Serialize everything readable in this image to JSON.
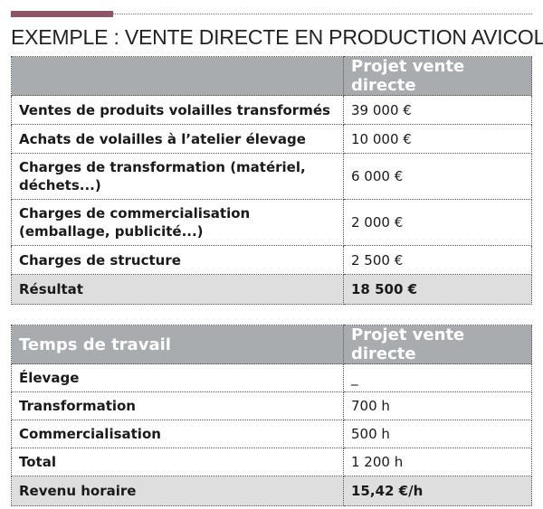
{
  "title": "EXEMPLE : VENTE DIRECTE EN PRODUCTION AVICOLE",
  "table1": {
    "header": [
      "",
      "Projet vente directe"
    ],
    "rows": [
      {
        "label": "Ventes de produits volailles transformés",
        "value": "39 000 €"
      },
      {
        "label": "Achats de volailles à l’atelier élevage",
        "value": "10 000 €"
      },
      {
        "label_line1": "Charges de transformation (matériel,",
        "label_line2": "déchets...)",
        "value": "6 000 €"
      },
      {
        "label_line1": "Charges de commercialisation",
        "label_line2": "(emballage, publicité...)",
        "value": "2 000 €"
      },
      {
        "label": "Charges de structure",
        "value": "2 500 €"
      }
    ],
    "total": {
      "label": "Résultat",
      "value": "18 500 €"
    }
  },
  "table2": {
    "header": [
      "Temps de travail",
      "Projet vente directe"
    ],
    "rows": [
      {
        "label": "Élevage",
        "value": "_"
      },
      {
        "label": "Transformation",
        "value": "700 h"
      },
      {
        "label": "Commercialisation",
        "value": "500 h"
      },
      {
        "label": "Total",
        "value": "1 200 h"
      }
    ],
    "total": {
      "label": "Revenu horaire",
      "value": "15,42 €/h"
    }
  },
  "colors": {
    "accent": "#8e5566",
    "header_bg": "#a8acae",
    "total_bg": "#dededf"
  }
}
